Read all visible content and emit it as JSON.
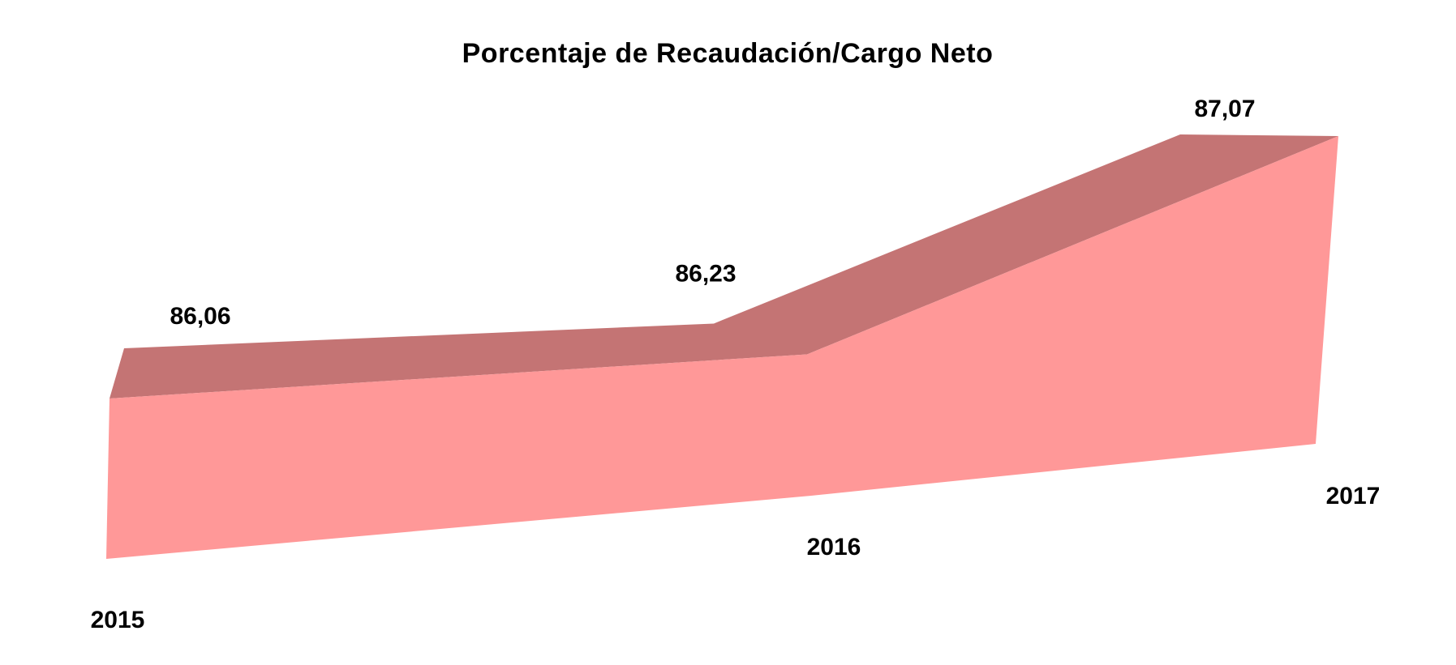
{
  "chart_data": {
    "type": "area",
    "title": "Porcentaje  de Recaudación/Cargo  Neto",
    "categories": [
      "2015",
      "2016",
      "2017"
    ],
    "values": [
      86.06,
      86.23,
      87.07
    ],
    "data_labels": [
      "86,06",
      "86,23",
      "87,07"
    ],
    "style": "3d",
    "grid": false,
    "legend": "none",
    "colors": {
      "front_face": "#ff9898",
      "top_face": "#c47474"
    }
  }
}
